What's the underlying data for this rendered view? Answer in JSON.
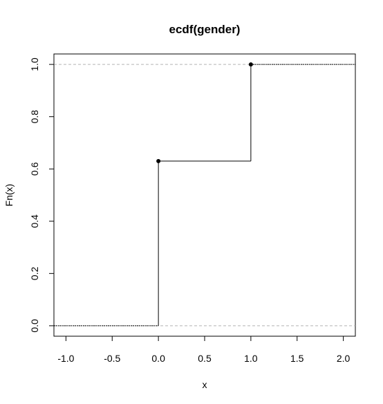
{
  "chart_data": {
    "type": "line",
    "title": "ecdf(gender)",
    "xlabel": "x",
    "ylabel": "Fn(x)",
    "xlim": [
      -1.13,
      2.13
    ],
    "ylim": [
      -0.04,
      1.04
    ],
    "x_ticks": [
      -1.0,
      -0.5,
      0.0,
      0.5,
      1.0,
      1.5,
      2.0
    ],
    "x_tick_labels": [
      "-1.0",
      "-0.5",
      "0.0",
      "0.5",
      "1.0",
      "1.5",
      "2.0"
    ],
    "y_ticks": [
      0.0,
      0.2,
      0.4,
      0.6,
      0.8,
      1.0
    ],
    "y_tick_labels": [
      "0.0",
      "0.2",
      "0.4",
      "0.6",
      "0.8",
      "1.0"
    ],
    "grid": false,
    "reference_lines_y": [
      0.0,
      1.0
    ],
    "step_points": [
      {
        "x": 0.0,
        "y": 0.63
      },
      {
        "x": 1.0,
        "y": 1.0
      }
    ],
    "colors": {
      "step_line": "#000000",
      "reference_line": "#b3b3b3",
      "point": "#000000"
    }
  }
}
